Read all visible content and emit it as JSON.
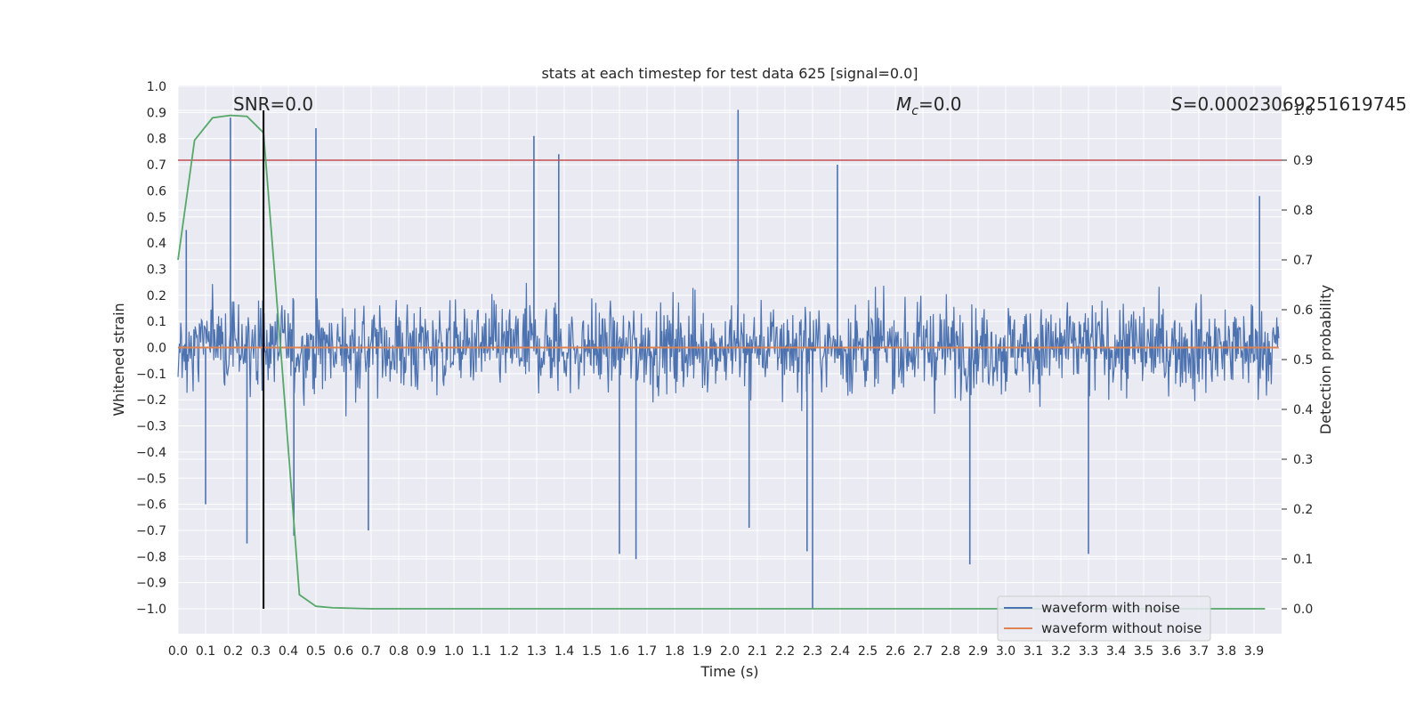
{
  "chart_data": {
    "type": "line",
    "title": "stats at each timestep for test data 625 [signal=0.0]",
    "xlabel": "Time (s)",
    "ylabel": "Whitened strain",
    "ylabel_right": "Detection probability",
    "xlim": [
      0.0,
      4.0
    ],
    "ylim": [
      -1.0,
      1.0
    ],
    "ylim_right": [
      0.0,
      1.0
    ],
    "x_ticks": [
      "0.0",
      "0.1",
      "0.2",
      "0.3",
      "0.4",
      "0.5",
      "0.6",
      "0.7",
      "0.8",
      "0.9",
      "1.0",
      "1.1",
      "1.2",
      "1.3",
      "1.4",
      "1.5",
      "1.6",
      "1.7",
      "1.8",
      "1.9",
      "2.0",
      "2.1",
      "2.2",
      "2.3",
      "2.4",
      "2.5",
      "2.6",
      "2.7",
      "2.8",
      "2.9",
      "3.0",
      "3.1",
      "3.2",
      "3.3",
      "3.4",
      "3.5",
      "3.6",
      "3.7",
      "3.8",
      "3.9"
    ],
    "y_ticks": [
      "1.0",
      "0.9",
      "0.8",
      "0.7",
      "0.6",
      "0.5",
      "0.4",
      "0.3",
      "0.2",
      "0.1",
      "0.0",
      "−0.1",
      "−0.2",
      "−0.3",
      "−0.4",
      "−0.5",
      "−0.6",
      "−0.7",
      "−0.8",
      "−0.9",
      "−1.0"
    ],
    "y_ticks_right": [
      "1.0",
      "0.9",
      "0.8",
      "0.7",
      "0.6",
      "0.5",
      "0.4",
      "0.3",
      "0.2",
      "0.1",
      "0.0"
    ],
    "grid": true,
    "legend_position": "lower-right",
    "annotations": {
      "snr": "SNR=0.0",
      "mc_symbol": "M",
      "mc_sub": "c",
      "mc_value": "=0.0",
      "s_symbol": "S",
      "s_value": "=0.00023069251619745"
    },
    "series": [
      {
        "name": "waveform with noise",
        "color": "#4c72b0",
        "kind": "noise",
        "t_start": 0.0,
        "t_end": 3.99,
        "typical_max": 0.4,
        "typical_min": -0.5,
        "spikes": [
          {
            "t": 0.03,
            "v": 0.45
          },
          {
            "t": 0.19,
            "v": 0.88
          },
          {
            "t": 0.25,
            "v": -0.75
          },
          {
            "t": 0.5,
            "v": 0.84
          },
          {
            "t": 0.42,
            "v": -0.72
          },
          {
            "t": 1.29,
            "v": 0.81
          },
          {
            "t": 1.38,
            "v": 0.74
          },
          {
            "t": 1.66,
            "v": -0.81
          },
          {
            "t": 1.6,
            "v": -0.79
          },
          {
            "t": 2.03,
            "v": 0.91
          },
          {
            "t": 2.3,
            "v": -1.0
          },
          {
            "t": 2.28,
            "v": -0.78
          },
          {
            "t": 2.39,
            "v": 0.7
          },
          {
            "t": 2.87,
            "v": -0.83
          },
          {
            "t": 3.3,
            "v": -0.79
          },
          {
            "t": 0.69,
            "v": -0.7
          },
          {
            "t": 2.07,
            "v": -0.69
          },
          {
            "t": 0.1,
            "v": -0.6
          },
          {
            "t": 3.92,
            "v": 0.58
          }
        ]
      },
      {
        "name": "waveform without noise",
        "color": "#dd8452",
        "x": [
          0.0,
          3.99
        ],
        "y": [
          0.0,
          0.0
        ]
      },
      {
        "name": "detection probability",
        "color": "#55a868",
        "axis": "right",
        "x": [
          0.0,
          0.06,
          0.125,
          0.19,
          0.25,
          0.31,
          0.375,
          0.44,
          0.5,
          0.56,
          0.625,
          0.7,
          1.0,
          2.0,
          3.0,
          3.94
        ],
        "y": [
          0.7,
          0.94,
          0.985,
          0.99,
          0.988,
          0.955,
          0.5,
          0.028,
          0.005,
          0.002,
          0.001,
          0.0,
          0.0,
          0.0,
          0.0,
          0.0
        ]
      }
    ],
    "threshold_line": {
      "axis": "right",
      "value": 0.9,
      "color": "#c44e52"
    },
    "marker_line": {
      "x": 0.31,
      "color": "#000000"
    }
  }
}
